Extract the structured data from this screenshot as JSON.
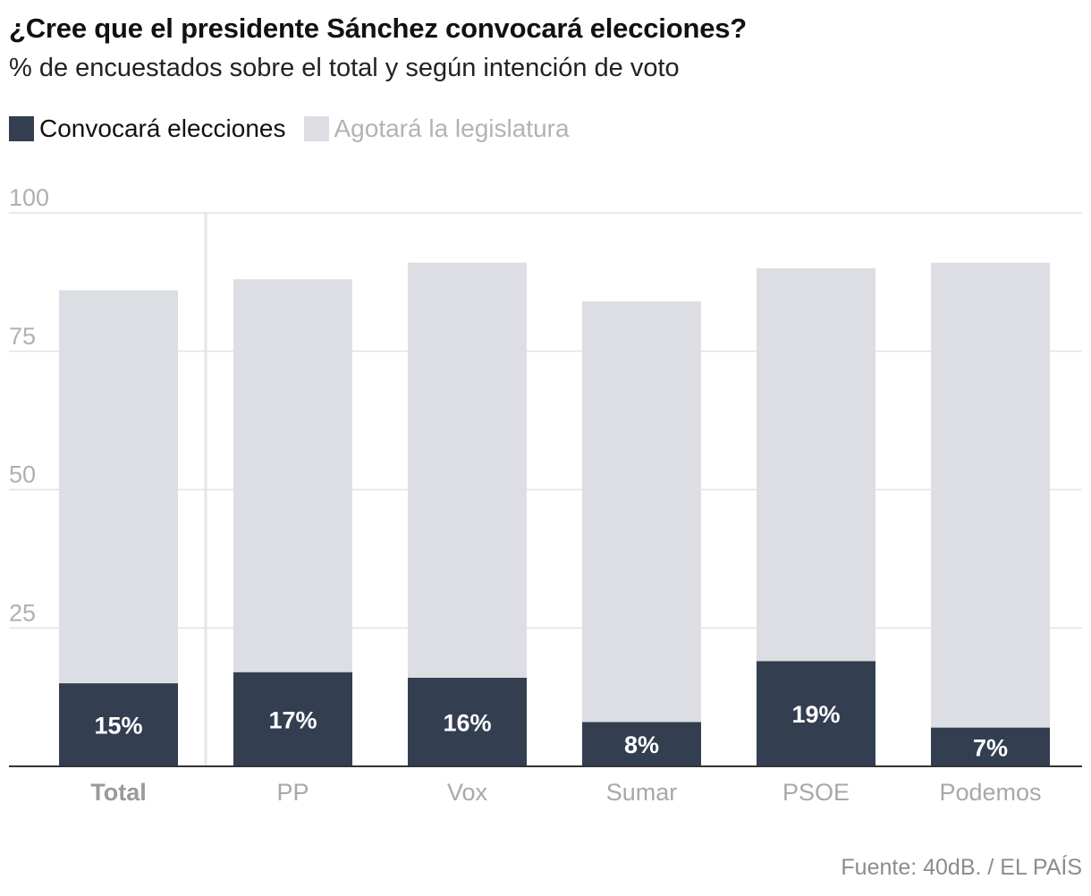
{
  "header": {
    "title": "¿Cree que el presidente Sánchez convocará elecciones?",
    "subtitle": "% de encuestados sobre el total y según intención de voto"
  },
  "legend": {
    "items": [
      {
        "label": "Convocará elecciones",
        "color": "#333f50"
      },
      {
        "label": "Agotará la legislatura",
        "color": "#dcdee4"
      }
    ]
  },
  "footer": {
    "source": "Fuente: 40dB. / EL PAÍS"
  },
  "chart_data": {
    "type": "bar",
    "stacked": true,
    "categories": [
      "Total",
      "PP",
      "Vox",
      "Sumar",
      "PSOE",
      "Podemos"
    ],
    "highlight_category": "Total",
    "series": [
      {
        "name": "Convocará elecciones",
        "color": "#333f50",
        "values": [
          15,
          17,
          16,
          8,
          19,
          7
        ],
        "labels": [
          "15%",
          "17%",
          "16%",
          "8%",
          "19%",
          "7%"
        ]
      },
      {
        "name": "Agotará la legislatura",
        "color": "#dcdee4",
        "values": [
          71,
          71,
          75,
          76,
          71,
          84
        ]
      }
    ],
    "ylim": [
      0,
      100
    ],
    "yticks": [
      "25",
      "50",
      "75",
      "100"
    ],
    "ytick_values": [
      25,
      50,
      75,
      100
    ],
    "grid": true,
    "legend_position": "top-left",
    "title": "¿Cree que el presidente Sánchez convocará elecciones?",
    "xlabel": "",
    "ylabel": ""
  }
}
